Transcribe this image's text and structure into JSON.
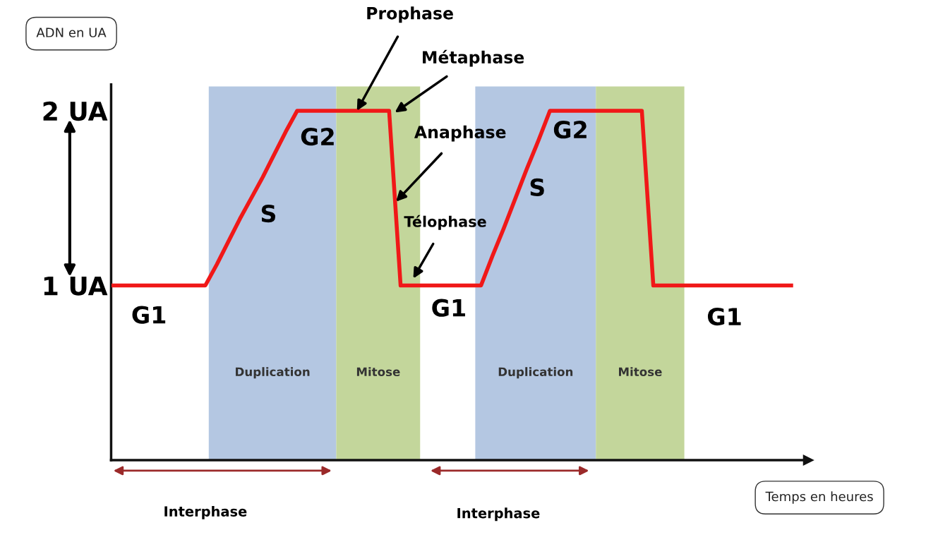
{
  "chart_data": {
    "type": "line",
    "xlabel": "Temps en heures",
    "ylabel": "ADN en UA",
    "categories": [
      null,
      null,
      null,
      null,
      null,
      null,
      null,
      null,
      null,
      null,
      null,
      null,
      null,
      null,
      null,
      null,
      null,
      null,
      null,
      null,
      null,
      null,
      null,
      null,
      null,
      null,
      null,
      null,
      null,
      null,
      null,
      null,
      null,
      null,
      null,
      null,
      null,
      null,
      null,
      null,
      null,
      null,
      null,
      null,
      null,
      null,
      null,
      null,
      null,
      null,
      null,
      null,
      null,
      null,
      null,
      null,
      null,
      null,
      null,
      null
    ],
    "series": [
      {
        "color": "#f01818",
        "values": [
          1,
          1,
          1,
          1,
          1,
          1,
          1,
          1,
          1,
          1.12,
          1.25,
          1.38,
          1.5,
          1.62,
          1.75,
          1.88,
          2,
          2,
          2,
          2,
          2,
          2,
          2,
          2,
          2,
          1,
          1,
          1,
          1,
          1,
          1,
          1,
          1,
          1.17,
          1.33,
          1.5,
          1.67,
          1.83,
          2,
          2,
          2,
          2,
          2,
          2,
          2,
          2,
          2,
          1,
          1,
          1,
          1,
          1,
          1,
          1,
          1,
          1,
          1,
          1,
          1,
          1
        ]
      }
    ],
    "ylim": [
      0,
      2.15
    ],
    "yticks": [
      {
        "value": 1,
        "label": "1 UA"
      },
      {
        "value": 2,
        "label": "2 UA"
      }
    ],
    "tick_labels": "y",
    "grid": false,
    "marker": "none",
    "line_style": "solid",
    "annotations": [
      "G1",
      "S",
      "G2",
      "G1",
      "S",
      "G2",
      "G1",
      "Prophase",
      "Métaphase",
      "Anaphase",
      "Télophase",
      "Interphase",
      "Interphase",
      "Duplication",
      "Mitose",
      "Duplication",
      "Mitose"
    ]
  }
}
